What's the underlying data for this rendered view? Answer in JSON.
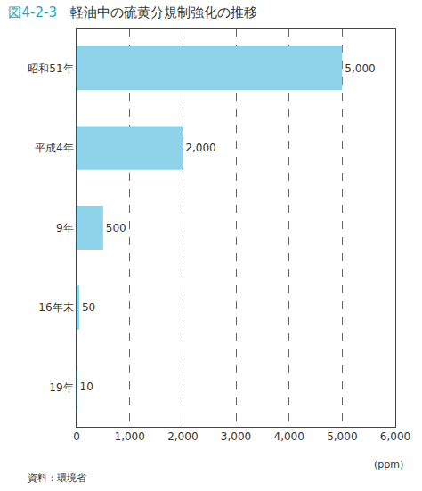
{
  "chart_data": {
    "type": "bar",
    "orientation": "horizontal",
    "title": "図4-2-3　軽油中の硫黄分規制強化の推移",
    "categories": [
      "昭和51年",
      "平成4年",
      "9年",
      "16年末",
      "19年"
    ],
    "values": [
      5000,
      2000,
      500,
      50,
      10
    ],
    "value_labels": [
      "5,000",
      "2,000",
      "500",
      "50",
      "10"
    ],
    "data_labels": true,
    "color": "#8fd3ea",
    "xlim": [
      0,
      6000
    ],
    "xticks": [
      0,
      {
        "value": 1000,
        "label": "1,000"
      },
      {
        "value": 2000,
        "label": "2,000"
      },
      {
        "value": 3000,
        "label": "3,000"
      },
      {
        "value": 4000,
        "label": "4,000"
      },
      {
        "value": 5000,
        "label": "5,000"
      },
      {
        "value": 6000,
        "label": "6,000"
      }
    ],
    "x_label": "(ppm)",
    "grid": true,
    "source": "資料：環境省"
  }
}
